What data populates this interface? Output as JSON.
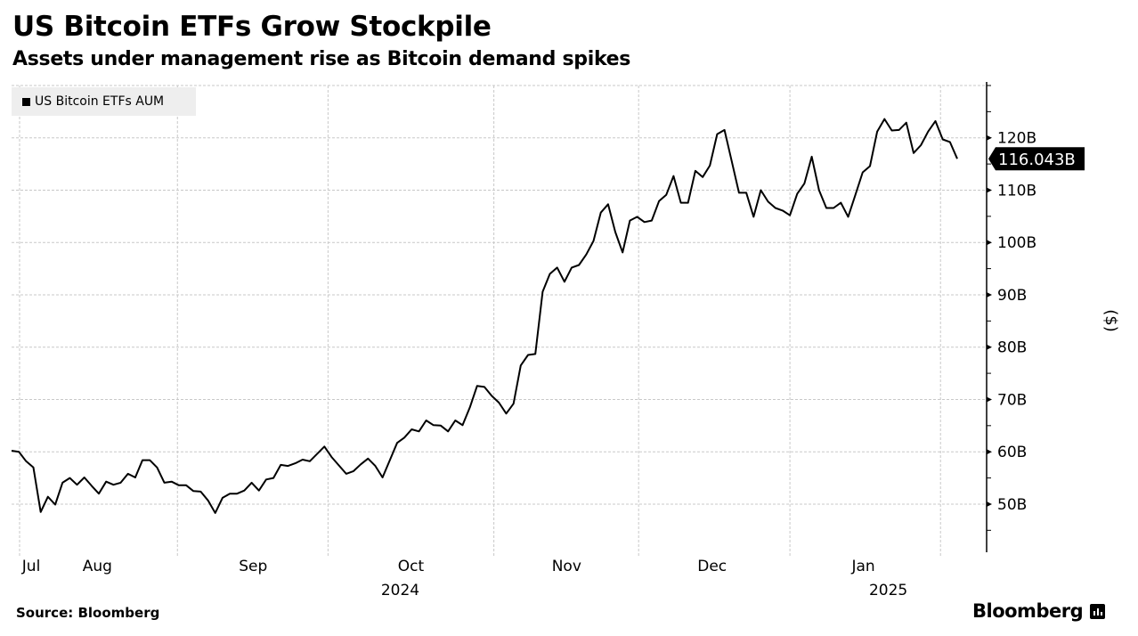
{
  "header": {
    "title": "US Bitcoin ETFs Grow Stockpile",
    "subtitle": "Assets under management rise as Bitcoin demand spikes"
  },
  "footer": {
    "source": "Source: Bloomberg",
    "logo": "Bloomberg"
  },
  "chart_data": {
    "type": "line",
    "title": "US Bitcoin ETFs Grow Stockpile",
    "subtitle": "Assets under management rise as Bitcoin demand spikes",
    "xlabel": "",
    "ylabel": "($)",
    "ylim": [
      40.8,
      130
    ],
    "grid": true,
    "legend": {
      "placement": "top-left",
      "entries": [
        "US Bitcoin ETFs AUM"
      ]
    },
    "series": [
      {
        "name": "US Bitcoin ETFs AUM",
        "color": "#000000",
        "values": [
          60.2,
          60.0,
          58.2,
          57.0,
          48.5,
          51.4,
          49.9,
          54.1,
          55.0,
          53.7,
          55.1,
          53.5,
          52.0,
          54.3,
          53.7,
          54.1,
          55.8,
          55.1,
          58.4,
          58.4,
          57.0,
          54.1,
          54.3,
          53.6,
          53.6,
          52.5,
          52.4,
          50.7,
          48.3,
          51.2,
          52.0,
          52.0,
          52.6,
          54.1,
          52.6,
          54.7,
          55.0,
          57.5,
          57.3,
          57.8,
          58.5,
          58.2,
          59.6,
          61.0,
          59.0,
          57.4,
          55.8,
          56.3,
          57.6,
          58.7,
          57.3,
          55.1,
          58.4,
          61.7,
          62.7,
          64.3,
          63.9,
          66.0,
          65.1,
          65.0,
          63.9,
          66.0,
          65.1,
          68.5,
          72.6,
          72.4,
          70.7,
          69.4,
          67.3,
          69.2,
          76.5,
          78.5,
          78.7,
          90.6,
          94.0,
          95.2,
          92.5,
          95.2,
          95.7,
          97.7,
          100.3,
          105.7,
          107.3,
          102.0,
          98.1,
          104.2,
          104.9,
          103.9,
          104.2,
          107.9,
          109.1,
          112.7,
          107.6,
          107.6,
          113.7,
          112.5,
          114.7,
          120.7,
          121.5,
          115.5,
          109.5,
          109.5,
          104.9,
          110.0,
          107.8,
          106.6,
          106.1,
          105.2,
          109.3,
          111.3,
          116.4,
          110.0,
          106.6,
          106.6,
          107.6,
          104.9,
          109.1,
          113.4,
          114.6,
          121.2,
          123.6,
          121.4,
          121.5,
          122.9,
          117.1,
          118.6,
          121.2,
          123.2,
          119.7,
          119.2,
          116.0
        ]
      }
    ],
    "last_value_label": "116.043B",
    "y_ticks": [
      {
        "value": 50,
        "label": "50B"
      },
      {
        "value": 60,
        "label": "60B"
      },
      {
        "value": 70,
        "label": "70B"
      },
      {
        "value": 80,
        "label": "80B"
      },
      {
        "value": 90,
        "label": "90B"
      },
      {
        "value": 100,
        "label": "100B"
      },
      {
        "value": 110,
        "label": "110B"
      },
      {
        "value": 120,
        "label": "120B"
      }
    ],
    "y_grid": [
      50,
      60,
      70,
      80,
      90,
      100,
      110,
      120,
      130
    ],
    "y_minor_ticks": [
      45,
      55,
      65,
      75,
      85,
      95,
      105,
      115,
      125,
      130
    ],
    "x_grid_index": [
      1.1,
      22.8,
      43.5,
      66.3,
      86.2,
      107,
      127.7
    ],
    "x_ticks": [
      {
        "index": 2.7,
        "label": "Jul"
      },
      {
        "index": 11.8,
        "label": "Aug"
      },
      {
        "index": 33.2,
        "label": "Sep"
      },
      {
        "index": 54.9,
        "label": "Oct",
        "year": "2024"
      },
      {
        "index": 76.3,
        "label": "Nov"
      },
      {
        "index": 96.3,
        "label": "Dec"
      },
      {
        "index": 117.1,
        "label": "Jan",
        "year": "2025"
      }
    ]
  }
}
